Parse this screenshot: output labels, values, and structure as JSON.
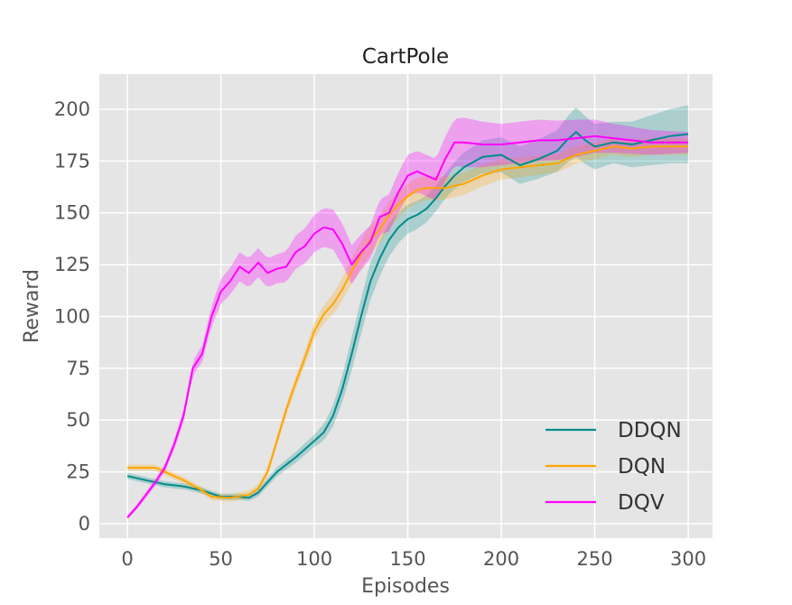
{
  "chart_data": {
    "type": "line",
    "title": "CartPole",
    "xlabel": "Episodes",
    "ylabel": "Reward",
    "xlim": [
      -15,
      313
    ],
    "ylim": [
      -7,
      217
    ],
    "x_ticks": [
      0,
      50,
      100,
      150,
      200,
      250,
      300
    ],
    "y_ticks": [
      0,
      25,
      50,
      75,
      100,
      125,
      150,
      175,
      200
    ],
    "grid": true,
    "legend_position": "bottom-right",
    "background": "#e5e5e5",
    "series": [
      {
        "name": "DDQN",
        "color": "#008b8b",
        "band_opacity": 0.25,
        "points": [
          [
            0,
            23
          ],
          [
            10,
            21
          ],
          [
            20,
            19
          ],
          [
            30,
            18
          ],
          [
            40,
            16
          ],
          [
            50,
            13
          ],
          [
            60,
            13
          ],
          [
            65,
            12.5
          ],
          [
            70,
            15
          ],
          [
            75,
            20
          ],
          [
            80,
            25
          ],
          [
            90,
            32
          ],
          [
            100,
            40
          ],
          [
            105,
            44
          ],
          [
            110,
            52
          ],
          [
            115,
            65
          ],
          [
            120,
            82
          ],
          [
            125,
            100
          ],
          [
            130,
            117
          ],
          [
            135,
            128
          ],
          [
            140,
            137
          ],
          [
            145,
            143
          ],
          [
            150,
            147
          ],
          [
            155,
            149
          ],
          [
            160,
            152
          ],
          [
            165,
            157
          ],
          [
            170,
            163
          ],
          [
            175,
            168
          ],
          [
            180,
            172
          ],
          [
            190,
            177
          ],
          [
            200,
            178
          ],
          [
            210,
            173
          ],
          [
            220,
            176
          ],
          [
            230,
            180
          ],
          [
            235,
            185
          ],
          [
            240,
            189
          ],
          [
            245,
            185
          ],
          [
            250,
            182
          ],
          [
            260,
            184
          ],
          [
            270,
            183
          ],
          [
            280,
            185
          ],
          [
            290,
            187
          ],
          [
            300,
            188
          ]
        ],
        "band": [
          [
            0,
            1.5
          ],
          [
            60,
            1.5
          ],
          [
            75,
            2
          ],
          [
            100,
            3
          ],
          [
            110,
            5
          ],
          [
            120,
            8
          ],
          [
            130,
            9
          ],
          [
            140,
            8
          ],
          [
            150,
            7
          ],
          [
            170,
            6
          ],
          [
            190,
            8
          ],
          [
            210,
            9
          ],
          [
            230,
            10
          ],
          [
            240,
            12
          ],
          [
            260,
            10
          ],
          [
            300,
            14
          ]
        ]
      },
      {
        "name": "DQN",
        "color": "#ffa500",
        "band_opacity": 0.25,
        "points": [
          [
            0,
            27
          ],
          [
            15,
            27
          ],
          [
            20,
            25
          ],
          [
            30,
            21
          ],
          [
            40,
            16
          ],
          [
            45,
            13
          ],
          [
            55,
            12.5
          ],
          [
            65,
            14
          ],
          [
            70,
            17
          ],
          [
            75,
            25
          ],
          [
            80,
            40
          ],
          [
            85,
            55
          ],
          [
            90,
            68
          ],
          [
            95,
            80
          ],
          [
            100,
            93
          ],
          [
            105,
            101
          ],
          [
            110,
            106
          ],
          [
            115,
            113
          ],
          [
            120,
            122
          ],
          [
            125,
            130
          ],
          [
            130,
            137
          ],
          [
            135,
            142
          ],
          [
            140,
            149
          ],
          [
            145,
            154
          ],
          [
            150,
            158
          ],
          [
            155,
            161
          ],
          [
            160,
            162
          ],
          [
            170,
            162
          ],
          [
            180,
            164
          ],
          [
            190,
            168
          ],
          [
            200,
            171
          ],
          [
            210,
            172
          ],
          [
            220,
            173
          ],
          [
            230,
            174
          ],
          [
            240,
            178
          ],
          [
            250,
            180
          ],
          [
            260,
            182
          ],
          [
            270,
            181
          ],
          [
            280,
            182
          ],
          [
            290,
            182
          ],
          [
            300,
            182
          ]
        ],
        "band": [
          [
            0,
            1.5
          ],
          [
            20,
            1.5
          ],
          [
            70,
            2
          ],
          [
            90,
            3
          ],
          [
            110,
            5
          ],
          [
            130,
            7
          ],
          [
            150,
            6
          ],
          [
            200,
            5
          ],
          [
            250,
            4
          ],
          [
            300,
            4
          ]
        ]
      },
      {
        "name": "DQV",
        "color": "#ff00ff",
        "band_opacity": 0.3,
        "points": [
          [
            0,
            3
          ],
          [
            5,
            8
          ],
          [
            10,
            14
          ],
          [
            15,
            20
          ],
          [
            20,
            27
          ],
          [
            25,
            38
          ],
          [
            30,
            52
          ],
          [
            35,
            75
          ],
          [
            40,
            82
          ],
          [
            45,
            100
          ],
          [
            50,
            112
          ],
          [
            55,
            117
          ],
          [
            60,
            124
          ],
          [
            65,
            121
          ],
          [
            70,
            126
          ],
          [
            75,
            121
          ],
          [
            80,
            123
          ],
          [
            85,
            124
          ],
          [
            90,
            131
          ],
          [
            95,
            134
          ],
          [
            100,
            140
          ],
          [
            105,
            143
          ],
          [
            110,
            142
          ],
          [
            115,
            135
          ],
          [
            120,
            125
          ],
          [
            125,
            131
          ],
          [
            130,
            136
          ],
          [
            135,
            148
          ],
          [
            140,
            150
          ],
          [
            145,
            160
          ],
          [
            150,
            168
          ],
          [
            155,
            170
          ],
          [
            160,
            168
          ],
          [
            165,
            166
          ],
          [
            170,
            176
          ],
          [
            175,
            184
          ],
          [
            180,
            184
          ],
          [
            190,
            183
          ],
          [
            200,
            183
          ],
          [
            210,
            184
          ],
          [
            220,
            185
          ],
          [
            230,
            185
          ],
          [
            240,
            186
          ],
          [
            250,
            187
          ],
          [
            260,
            186
          ],
          [
            270,
            185
          ],
          [
            280,
            184
          ],
          [
            290,
            184
          ],
          [
            300,
            184
          ]
        ],
        "band": [
          [
            0,
            1
          ],
          [
            20,
            2
          ],
          [
            40,
            4
          ],
          [
            50,
            6
          ],
          [
            60,
            7
          ],
          [
            80,
            7
          ],
          [
            100,
            9
          ],
          [
            115,
            10
          ],
          [
            130,
            8
          ],
          [
            150,
            10
          ],
          [
            165,
            10
          ],
          [
            180,
            12
          ],
          [
            200,
            10
          ],
          [
            220,
            10
          ],
          [
            240,
            9
          ],
          [
            260,
            7
          ],
          [
            300,
            5
          ]
        ]
      }
    ]
  }
}
